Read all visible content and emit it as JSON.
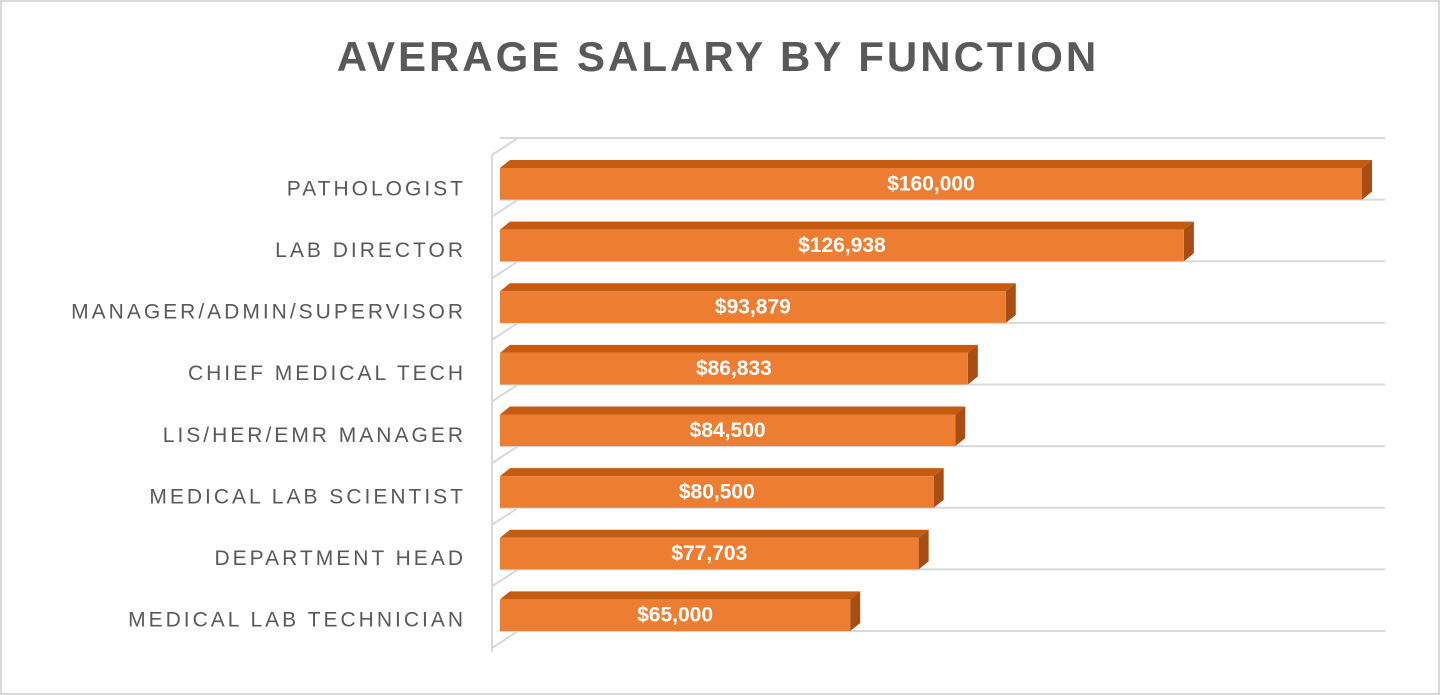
{
  "chart_data": {
    "type": "bar3d_horizontal",
    "title": "AVERAGE SALARY BY FUNCTION",
    "categories": [
      "PATHOLOGIST",
      "LAB DIRECTOR",
      "MANAGER/ADMIN/SUPERVISOR",
      "CHIEF MEDICAL TECH",
      "LIS/HER/EMR MANAGER",
      "MEDICAL LAB SCIENTIST",
      "DEPARTMENT HEAD",
      "MEDICAL LAB TECHNICIAN"
    ],
    "values": [
      160000,
      126938,
      93879,
      86833,
      84500,
      80500,
      77703,
      65000
    ],
    "value_labels": [
      "$160,000",
      "$126,938",
      "$93,879",
      "$86,833",
      "$84,500",
      "$80,500",
      "$77,703",
      "$65,000"
    ],
    "color": "#ED7D31",
    "grid": true
  }
}
